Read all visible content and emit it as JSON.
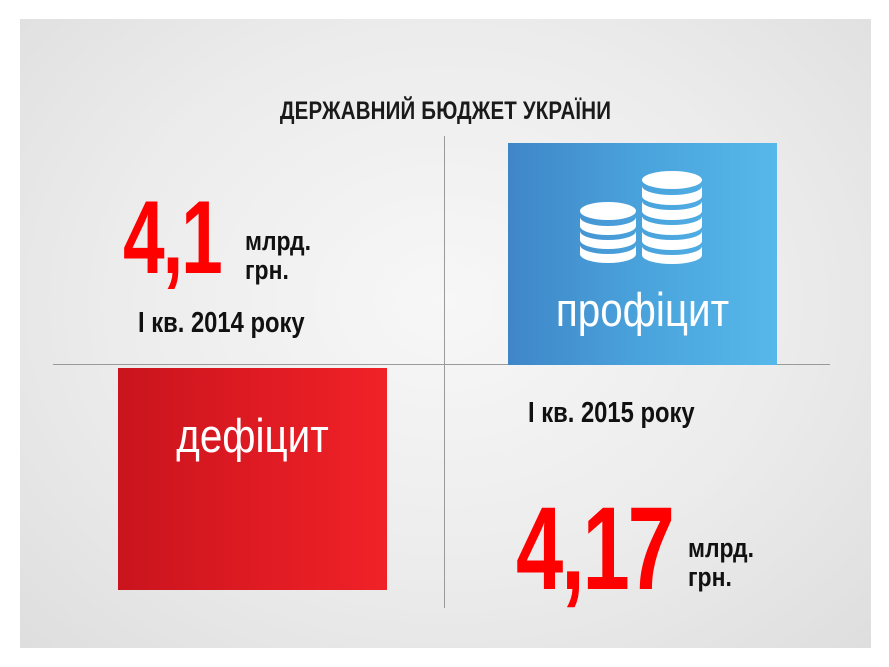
{
  "title": "ДЕРЖАВНИЙ БЮДЖЕТ УКРАЇНИ",
  "left": {
    "value": "4,1",
    "unit_line1": "млрд.",
    "unit_line2": "грн.",
    "period": "І кв. 2014 року",
    "label": "дефіцит",
    "color": "#e01b23"
  },
  "right": {
    "value": "4,17",
    "unit_line1": "млрд.",
    "unit_line2": "грн.",
    "period": "І кв. 2015 року",
    "label": "профіцит",
    "color": "#4aa3dc",
    "icon": "coins-icon"
  },
  "accent_color": "#ff0000"
}
